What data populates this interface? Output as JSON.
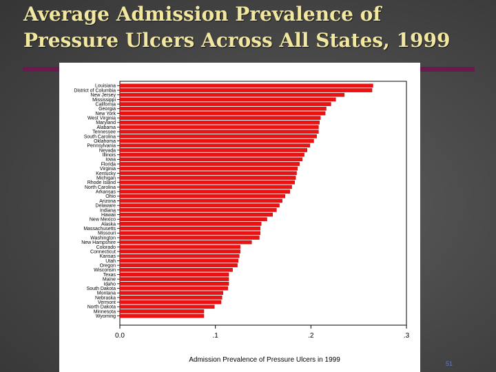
{
  "slide": {
    "title_line1": "Average Admission Prevalence of",
    "title_line2": "Pressure Ulcers Across All States, 1999",
    "page_number": "51"
  },
  "colors": {
    "bar": "#ee1111",
    "bar_edge": "#991111",
    "title": "#f2e7a0",
    "accent_rule": "#6b1a4f"
  },
  "chart_data": {
    "type": "bar",
    "orientation": "horizontal",
    "title": "",
    "xlabel": "Admission Prevalence of Pressure Ulcers in 1999",
    "ylabel": "",
    "xlim": [
      0,
      0.3
    ],
    "xticks": [
      0,
      0.1,
      0.2,
      0.3
    ],
    "xtick_labels": [
      "0.0",
      ".1",
      ".2",
      ".3"
    ],
    "grid": false,
    "categories": [
      "Louisiana",
      "District of Columbia",
      "New Jersey",
      "Mississippi",
      "California",
      "Georgia",
      "New York",
      "West Virginia",
      "Maryland",
      "Alabama",
      "Tennessee",
      "South Carolina",
      "Oklahoma",
      "Pennsylvania",
      "Nevada",
      "Illinois",
      "Iowa",
      "Florida",
      "Virginia",
      "Kentucky",
      "Michigan",
      "Rhode Island",
      "North Carolina",
      "Arkansas",
      "Ohio",
      "Arizona",
      "Delaware",
      "Indiana",
      "Hawaii",
      "New Mexico",
      "Alaska",
      "Massachusetts",
      "Missouri",
      "Washington",
      "New Hampshire",
      "Colorado",
      "Connecticut",
      "Kansas",
      "Utah",
      "Oregon",
      "Wisconsin",
      "Texas",
      "Maine",
      "Idaho",
      "South Dakota",
      "Montana",
      "Nebraska",
      "Vermont",
      "North Dakota",
      "Minnesota",
      "Wyoming"
    ],
    "values": [
      0.265,
      0.264,
      0.235,
      0.226,
      0.221,
      0.216,
      0.215,
      0.21,
      0.209,
      0.208,
      0.208,
      0.206,
      0.203,
      0.199,
      0.196,
      0.193,
      0.191,
      0.188,
      0.186,
      0.185,
      0.184,
      0.183,
      0.18,
      0.178,
      0.173,
      0.17,
      0.167,
      0.164,
      0.16,
      0.154,
      0.148,
      0.147,
      0.147,
      0.146,
      0.138,
      0.126,
      0.126,
      0.125,
      0.124,
      0.123,
      0.118,
      0.114,
      0.114,
      0.114,
      0.113,
      0.108,
      0.107,
      0.106,
      0.099,
      0.088,
      0.088
    ]
  }
}
